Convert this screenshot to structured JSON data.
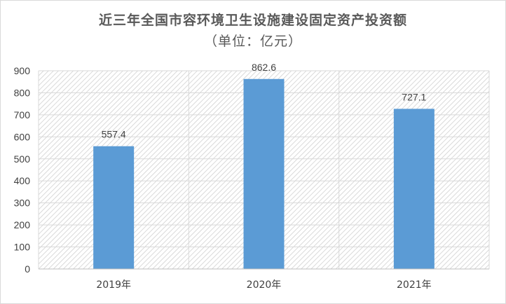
{
  "chart_data": {
    "type": "bar",
    "title": "近三年全国市容环境卫生设施建设固定资产投资额",
    "subtitle": "（单位：亿元）",
    "categories": [
      "2019年",
      "2020年",
      "2021年"
    ],
    "values": [
      557.4,
      862.6,
      727.1
    ],
    "value_labels": [
      "557.4",
      "862.6",
      "727.1"
    ],
    "ylim": [
      0,
      900
    ],
    "yticks": [
      0,
      100,
      200,
      300,
      400,
      500,
      600,
      700,
      800,
      900
    ],
    "xlabel": "",
    "ylabel": "",
    "grid": true,
    "bar_color": "#5b9bd5",
    "plot_background": "hatched"
  }
}
